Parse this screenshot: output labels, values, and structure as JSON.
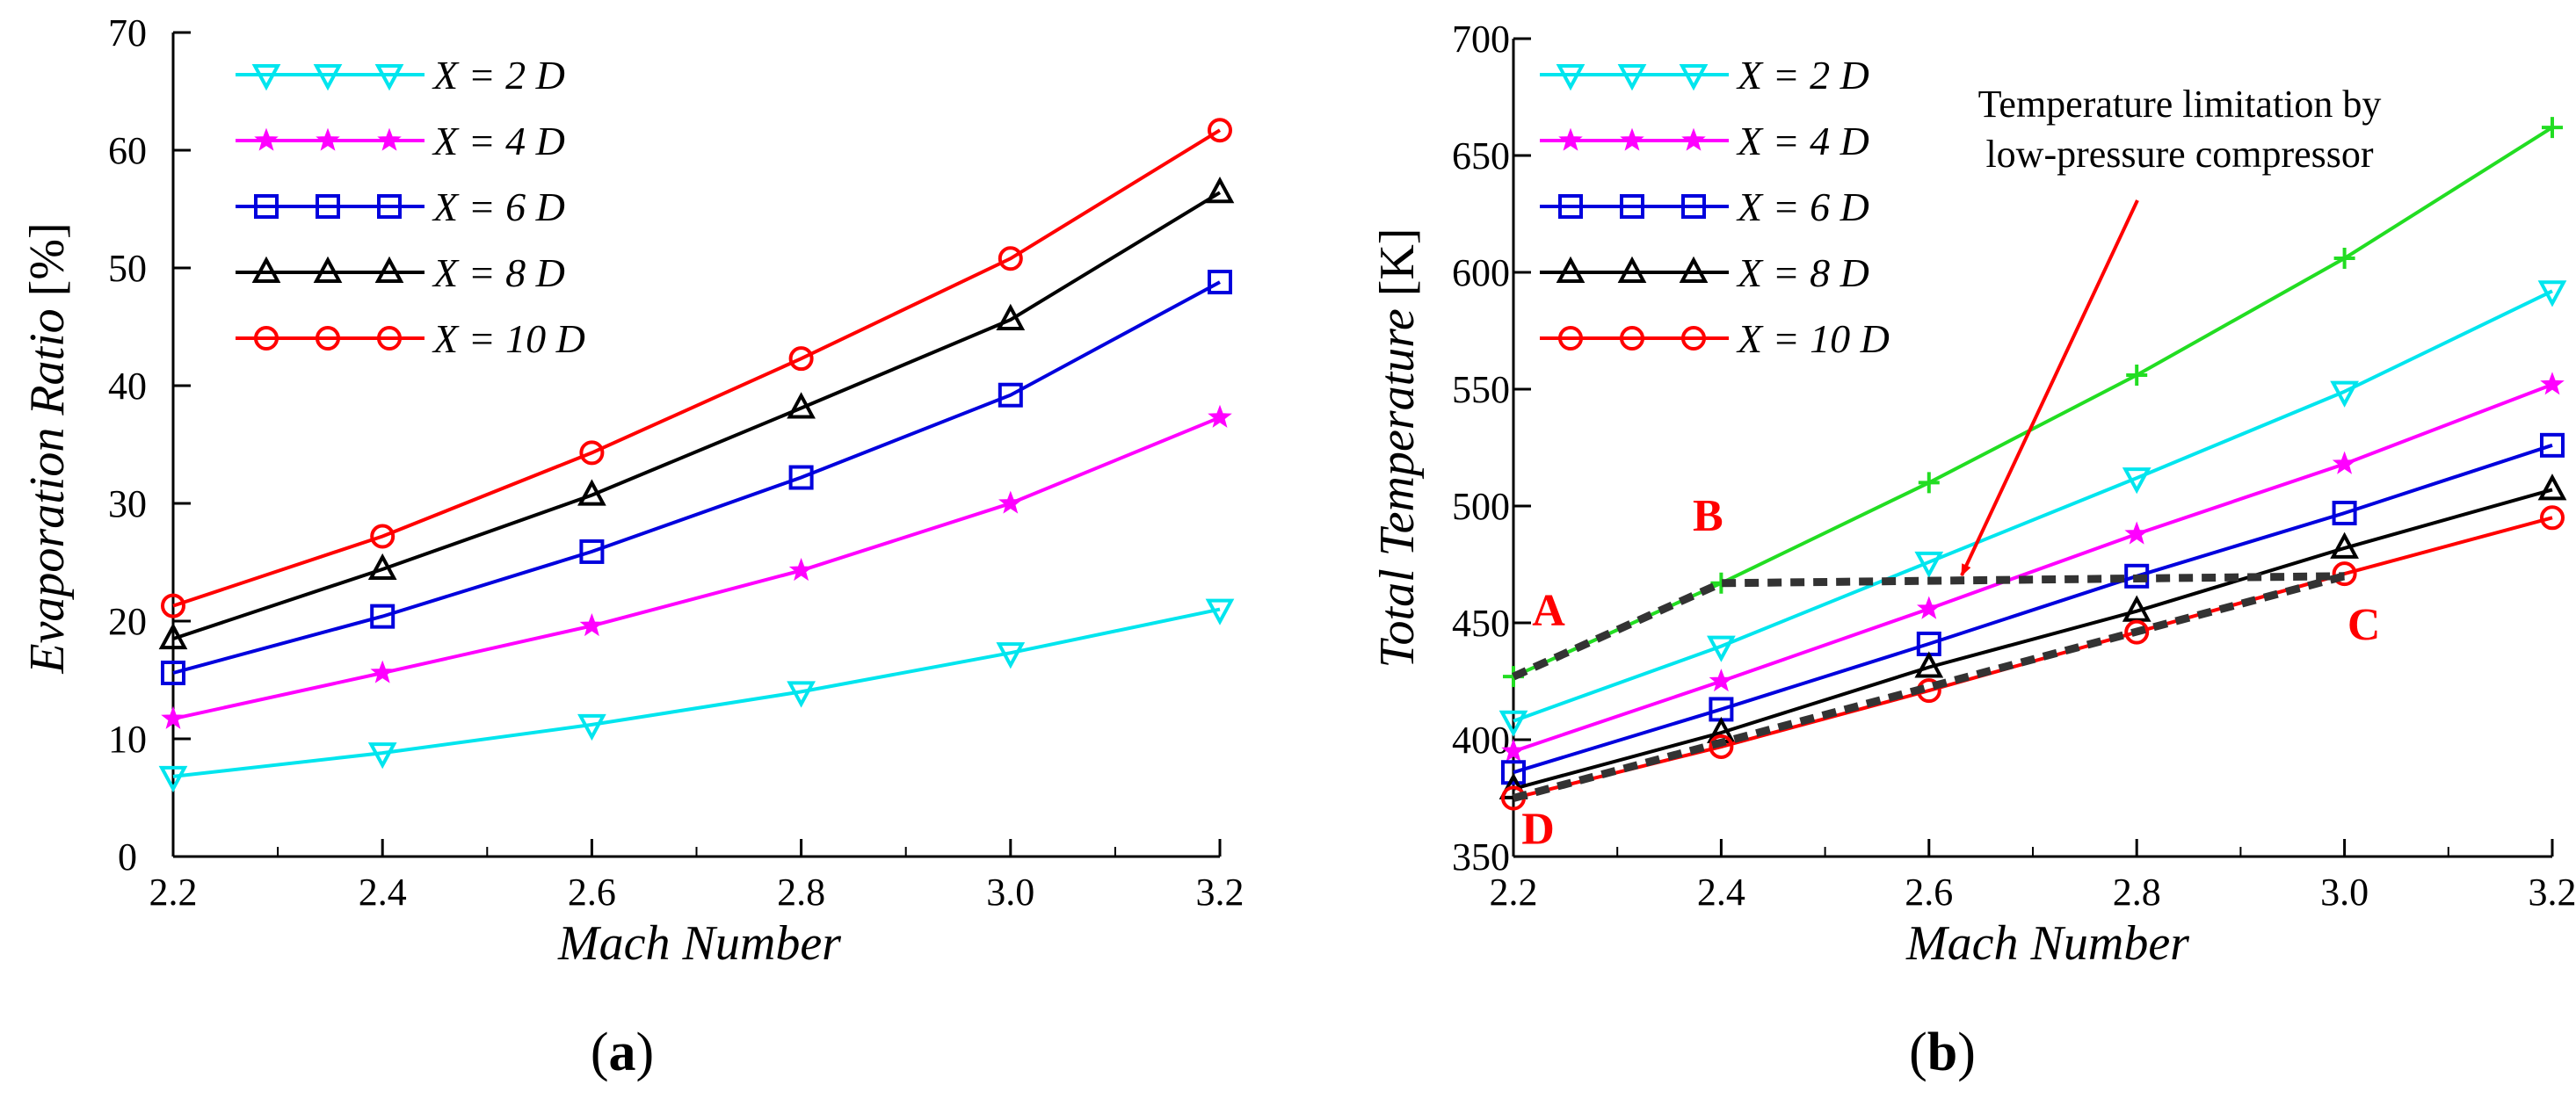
{
  "chart_data": [
    {
      "type": "line",
      "panel_label": "(a)",
      "xlabel": "Mach Number",
      "ylabel": "Evaporation Ratio [%]",
      "xlim": [
        2.2,
        3.2
      ],
      "ylim": [
        0,
        70
      ],
      "xticks": [
        "2.2",
        "2.4",
        "2.6",
        "2.8",
        "3.0",
        "3.2"
      ],
      "yticks": [
        "0",
        "10",
        "20",
        "30",
        "40",
        "50",
        "60",
        "70"
      ],
      "legend": "top-left",
      "x": [
        2.2,
        2.4,
        2.6,
        2.8,
        3.0,
        3.2
      ],
      "series": [
        {
          "name": "X = 2 D",
          "marker": "triangle-down",
          "color": "#00e5ee",
          "values": [
            6.8,
            8.8,
            11.2,
            14.0,
            17.3,
            21.0
          ]
        },
        {
          "name": "X = 4 D",
          "marker": "star",
          "color": "#ff00ff",
          "values": [
            11.7,
            15.6,
            19.6,
            24.3,
            30.0,
            37.3
          ]
        },
        {
          "name": "X = 6 D",
          "marker": "square",
          "color": "#0000dd",
          "values": [
            15.6,
            20.4,
            25.9,
            32.2,
            39.2,
            48.8
          ]
        },
        {
          "name": "X = 8 D",
          "marker": "triangle-up",
          "color": "#000000",
          "values": [
            18.5,
            24.4,
            30.7,
            38.1,
            45.6,
            56.4
          ]
        },
        {
          "name": "X = 10 D",
          "marker": "circle",
          "color": "#ff0000",
          "values": [
            21.3,
            27.2,
            34.3,
            42.3,
            50.8,
            61.7
          ]
        }
      ]
    },
    {
      "type": "line",
      "panel_label": "(b)",
      "xlabel": "Mach Number",
      "ylabel": "Total Temperature [K]",
      "xlim": [
        2.2,
        3.2
      ],
      "ylim": [
        350,
        700
      ],
      "xticks": [
        "2.2",
        "2.4",
        "2.6",
        "2.8",
        "3.0",
        "3.2"
      ],
      "yticks": [
        "350",
        "400",
        "450",
        "500",
        "550",
        "600",
        "650",
        "700"
      ],
      "legend": "top-left",
      "x": [
        2.2,
        2.4,
        2.6,
        2.8,
        3.0,
        3.2
      ],
      "series": [
        {
          "name": "",
          "marker": "plus",
          "color": "#22dd22",
          "values": [
            427,
            467,
            510,
            556,
            606,
            662
          ]
        },
        {
          "name": "X = 2 D",
          "marker": "triangle-down",
          "color": "#00e5ee",
          "values": [
            408,
            440,
            476,
            512,
            549,
            592
          ]
        },
        {
          "name": "X = 4 D",
          "marker": "star",
          "color": "#ff00ff",
          "values": [
            395,
            425,
            456,
            488,
            518,
            552
          ]
        },
        {
          "name": "X = 6 D",
          "marker": "square",
          "color": "#0000dd",
          "values": [
            386,
            413,
            441,
            470,
            497,
            526
          ]
        },
        {
          "name": "X = 8 D",
          "marker": "triangle-up",
          "color": "#000000",
          "values": [
            379,
            403,
            431,
            455,
            482,
            507
          ]
        },
        {
          "name": "X = 10 D",
          "marker": "circle",
          "color": "#ff0000",
          "values": [
            375,
            397,
            421,
            446,
            471,
            495
          ]
        }
      ],
      "boundary": {
        "points": [
          {
            "label": "A",
            "x": 2.2,
            "y": 427
          },
          {
            "label": "B",
            "x": 2.4,
            "y": 467
          },
          {
            "label": "C",
            "x": 3.0,
            "y": 470
          },
          {
            "label": "D",
            "x": 2.2,
            "y": 375
          }
        ]
      },
      "annotation": {
        "lines": [
          "Temperature limitation by",
          "low-pressure compressor"
        ],
        "arrow_to": {
          "x": 2.64,
          "y": 467
        }
      }
    }
  ]
}
